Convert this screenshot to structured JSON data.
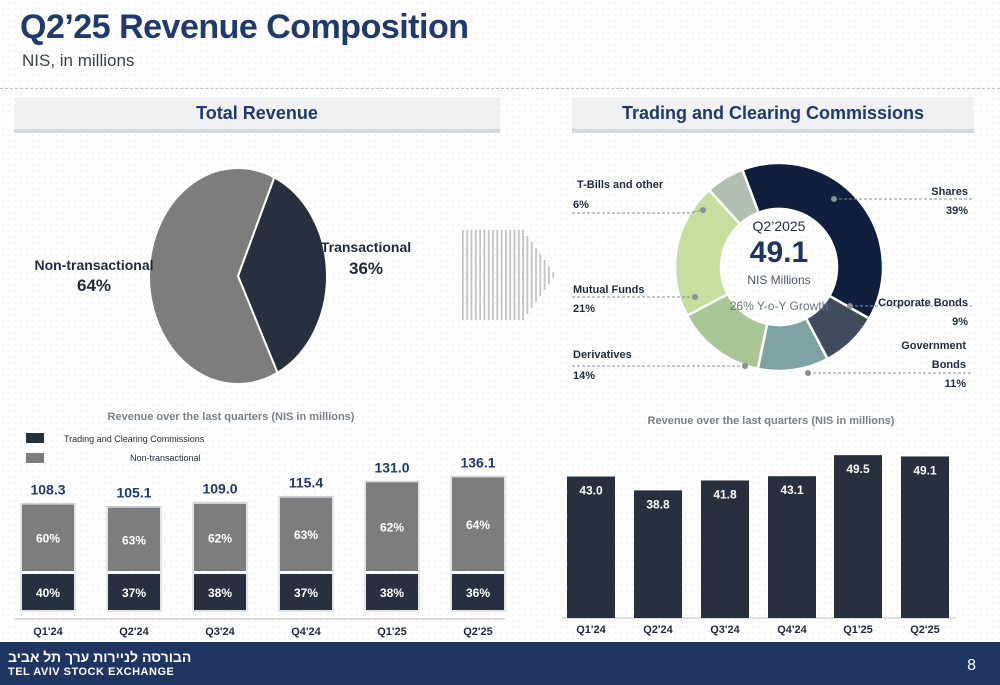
{
  "header": {
    "title": "Q2’25 Revenue Composition",
    "subtitle": "NIS, in millions"
  },
  "sections": {
    "total": "Total Revenue",
    "trading": "Trading and Clearing Commissions"
  },
  "total_pie_labels": {
    "non_transactional_name": "Non-transactional",
    "non_transactional_pct": "64%",
    "transactional_name": "Transactional",
    "transactional_pct": "36%"
  },
  "donut_center": {
    "period": "Q2’2025",
    "value": "49.1",
    "unit": "NIS Millions",
    "growth": "26% Y-o-Y Growth"
  },
  "donut_labels": {
    "tbills_name": "T-Bills and other",
    "tbills_pct": "6%",
    "mutual_name": "Mutual Funds",
    "mutual_pct": "21%",
    "deriv_name": "Derivatives",
    "deriv_pct": "14%",
    "shares_name": "Shares",
    "shares_pct": "39%",
    "corp_name": "Corporate Bonds",
    "corp_pct": "9%",
    "gov_name_1": "Government",
    "gov_name_2": "Bonds",
    "gov_pct": "11%"
  },
  "bar_titles": {
    "left": "Revenue over the last quarters (NIS in millions)",
    "right": "Revenue over the last quarters (NIS in millions)"
  },
  "legend": {
    "trading": "Trading and Clearing Commissions",
    "nontrans": "Non-transactional"
  },
  "footer": {
    "hebrew": "הבורסה לניירות ערך תל אביב",
    "english": "TEL AVIV STOCK EXCHANGE",
    "page": "8"
  },
  "colors": {
    "navy": "#0f1f3d",
    "dark": "#27303f",
    "gray": "#7d7d7d",
    "title_blue": "#1e3a6e",
    "slate": "#3e4c5e",
    "teal": "#7fa3a4",
    "mid_green": "#a9c696",
    "light_green": "#c5df9f",
    "gray_green": "#b1bfb1"
  },
  "chart_data": [
    {
      "type": "pie",
      "title": "Total Revenue",
      "labels": [
        "Transactional",
        "Non-transactional"
      ],
      "values": [
        36,
        64
      ]
    },
    {
      "type": "pie",
      "title": "Trading and Clearing Commissions",
      "labels": [
        "Shares",
        "Corporate Bonds",
        "Government Bonds",
        "Derivatives",
        "Mutual Funds",
        "T-Bills and other"
      ],
      "values": [
        39,
        9,
        11,
        14,
        21,
        6
      ],
      "center_value": 49.1
    },
    {
      "type": "bar",
      "title": "Revenue over the last quarters (NIS in millions)",
      "stacked": true,
      "categories": [
        "Q1'24",
        "Q2'24",
        "Q3'24",
        "Q4'24",
        "Q1'25",
        "Q2'25"
      ],
      "totals": [
        108.3,
        105.1,
        109.0,
        115.4,
        131.0,
        136.1
      ],
      "series": [
        {
          "name": "Trading and Clearing Commissions",
          "percent": [
            40,
            37,
            38,
            37,
            38,
            36
          ]
        },
        {
          "name": "Non-transactional",
          "percent": [
            60,
            63,
            62,
            63,
            62,
            64
          ]
        }
      ],
      "legend_position": "top-left"
    },
    {
      "type": "bar",
      "title": "Revenue over the last quarters (NIS in millions)",
      "categories": [
        "Q1'24",
        "Q2'24",
        "Q3'24",
        "Q4'24",
        "Q1'25",
        "Q2'25"
      ],
      "values": [
        43.0,
        38.8,
        41.8,
        43.1,
        49.5,
        49.1
      ],
      "ylim": [
        0,
        52
      ]
    }
  ]
}
